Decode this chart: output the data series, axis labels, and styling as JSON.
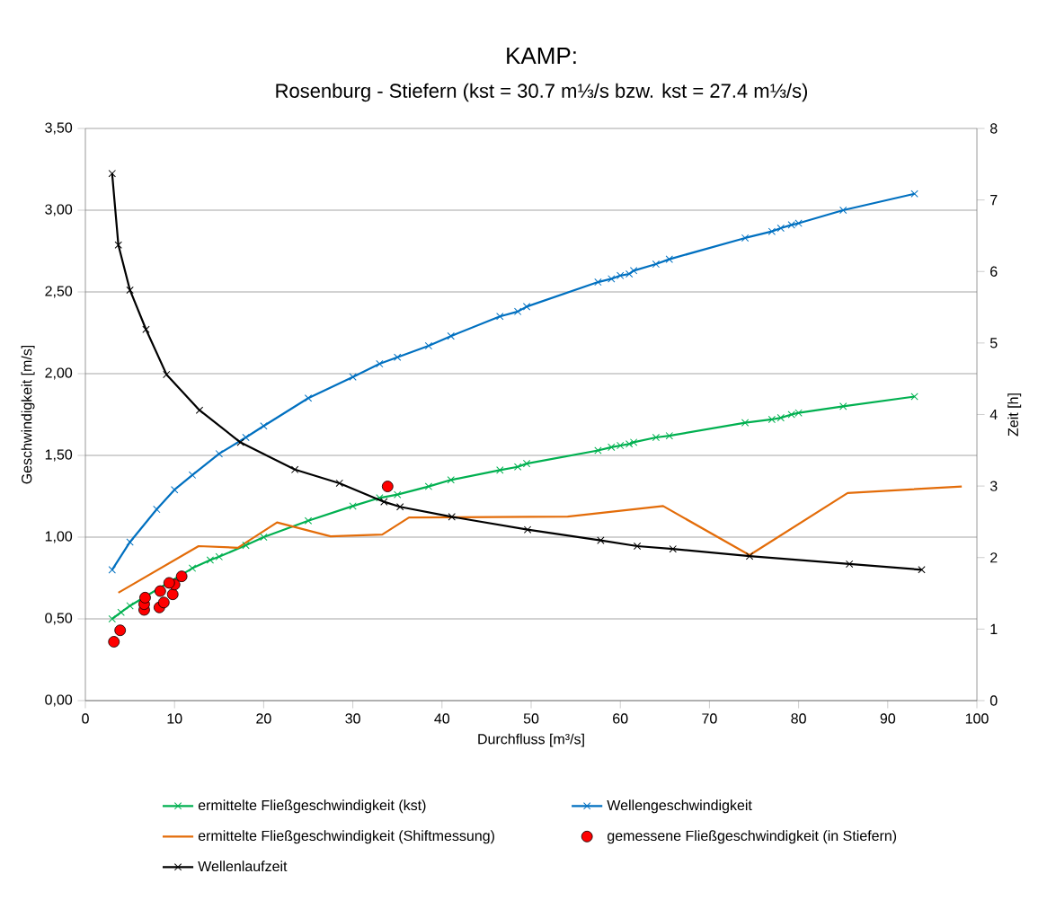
{
  "chart_data": {
    "type": "line",
    "title": "KAMP:",
    "subtitle": "Rosenburg - Stiefern (kst = 30.7 m⅓/s bzw. kst = 27.4 m⅓/s)",
    "xlabel": "Durchfluss [m³/s]",
    "ylabel": "Geschwindigkeit [m/s]",
    "y2label": "Zeit [h]",
    "xlim": [
      0,
      100
    ],
    "xticks": [
      0,
      10,
      20,
      30,
      40,
      50,
      60,
      70,
      80,
      90,
      100
    ],
    "ylim": [
      0,
      3.5
    ],
    "yticks": [
      {
        "value": 0,
        "label": "0,00"
      },
      {
        "value": 0.5,
        "label": "0,50"
      },
      {
        "value": 1,
        "label": "1,00"
      },
      {
        "value": 1.5,
        "label": "1,50"
      },
      {
        "value": 2,
        "label": "2,00"
      },
      {
        "value": 2.5,
        "label": "2,50"
      },
      {
        "value": 3,
        "label": "3,00"
      },
      {
        "value": 3.5,
        "label": "3,50"
      }
    ],
    "y2lim": [
      0,
      8
    ],
    "y2ticks": [
      0,
      1,
      2,
      3,
      4,
      5,
      6,
      7,
      8
    ],
    "grid": "y",
    "legend": "bottom",
    "series": [
      {
        "name": "ermittelte Fließgeschwindigkeit  (kst)",
        "color": "#00b050",
        "marker": "cross",
        "x": [
          3,
          4,
          5,
          12,
          14,
          15,
          18,
          20,
          25,
          30,
          33,
          35,
          38.5,
          41,
          46.5,
          48.5,
          49.5,
          57.5,
          59,
          60,
          61,
          61.5,
          64,
          65.5,
          74,
          77,
          78,
          79.2,
          80,
          85,
          93
        ],
        "values": [
          0.5,
          0.54,
          0.58,
          0.81,
          0.86,
          0.88,
          0.95,
          1.0,
          1.1,
          1.19,
          1.24,
          1.26,
          1.31,
          1.35,
          1.41,
          1.43,
          1.45,
          1.53,
          1.55,
          1.56,
          1.57,
          1.58,
          1.61,
          1.62,
          1.7,
          1.72,
          1.73,
          1.75,
          1.76,
          1.8,
          1.86
        ]
      },
      {
        "name": "Wellengeschwindigkeit",
        "color": "#0070c0",
        "marker": "cross",
        "x": [
          3,
          5,
          8,
          10,
          12,
          15,
          18,
          20,
          25,
          30,
          33,
          35,
          38.5,
          41,
          46.5,
          48.5,
          49.5,
          57.5,
          59,
          60,
          61,
          61.5,
          64,
          65.5,
          74,
          77,
          78,
          79.2,
          80,
          85,
          93
        ],
        "values": [
          0.8,
          0.97,
          1.17,
          1.29,
          1.38,
          1.51,
          1.61,
          1.68,
          1.85,
          1.98,
          2.06,
          2.1,
          2.17,
          2.23,
          2.35,
          2.38,
          2.41,
          2.56,
          2.58,
          2.6,
          2.61,
          2.63,
          2.67,
          2.7,
          2.83,
          2.87,
          2.89,
          2.91,
          2.92,
          3.0,
          3.1
        ]
      },
      {
        "name": "ermittelte Fließgeschwindigkeit  (Shiftmessung)",
        "color": "#e36c09",
        "marker": "none",
        "x": [
          3.7,
          12.7,
          17.1,
          21.5,
          27.5,
          33.3,
          36.3,
          54.1,
          64.8,
          74.5,
          85.5,
          98.3
        ],
        "values": [
          0.66,
          0.945,
          0.935,
          1.09,
          1.005,
          1.016,
          1.12,
          1.126,
          1.19,
          0.89,
          1.27,
          1.31
        ]
      },
      {
        "name": "gemessene Fließgeschwindigkeit  (in Stiefern)",
        "type": "scatter",
        "color": "#ff0000",
        "marker": "circle",
        "x": [
          3.2,
          3.9,
          6.6,
          6.6,
          6.7,
          8.3,
          8.4,
          8.8,
          9.8,
          10.0,
          9.4,
          10.8,
          33.9
        ],
        "values": [
          0.36,
          0.43,
          0.555,
          0.59,
          0.63,
          0.57,
          0.67,
          0.6,
          0.65,
          0.71,
          0.72,
          0.76,
          1.31
        ]
      },
      {
        "name": "Wellenlaufzeit",
        "color": "#000000",
        "marker": "cross",
        "axis": "y2",
        "x": [
          3.0,
          3.7,
          5.0,
          6.8,
          9.1,
          12.8,
          17.4,
          23.5,
          28.5,
          33.5,
          35.3,
          41.1,
          49.6,
          57.8,
          61.9,
          65.9,
          74.5,
          85.7,
          93.8
        ],
        "values": [
          7.37,
          6.37,
          5.74,
          5.19,
          4.56,
          4.06,
          3.61,
          3.23,
          3.04,
          2.78,
          2.71,
          2.57,
          2.39,
          2.24,
          2.16,
          2.12,
          2.02,
          1.91,
          1.83
        ]
      }
    ]
  }
}
